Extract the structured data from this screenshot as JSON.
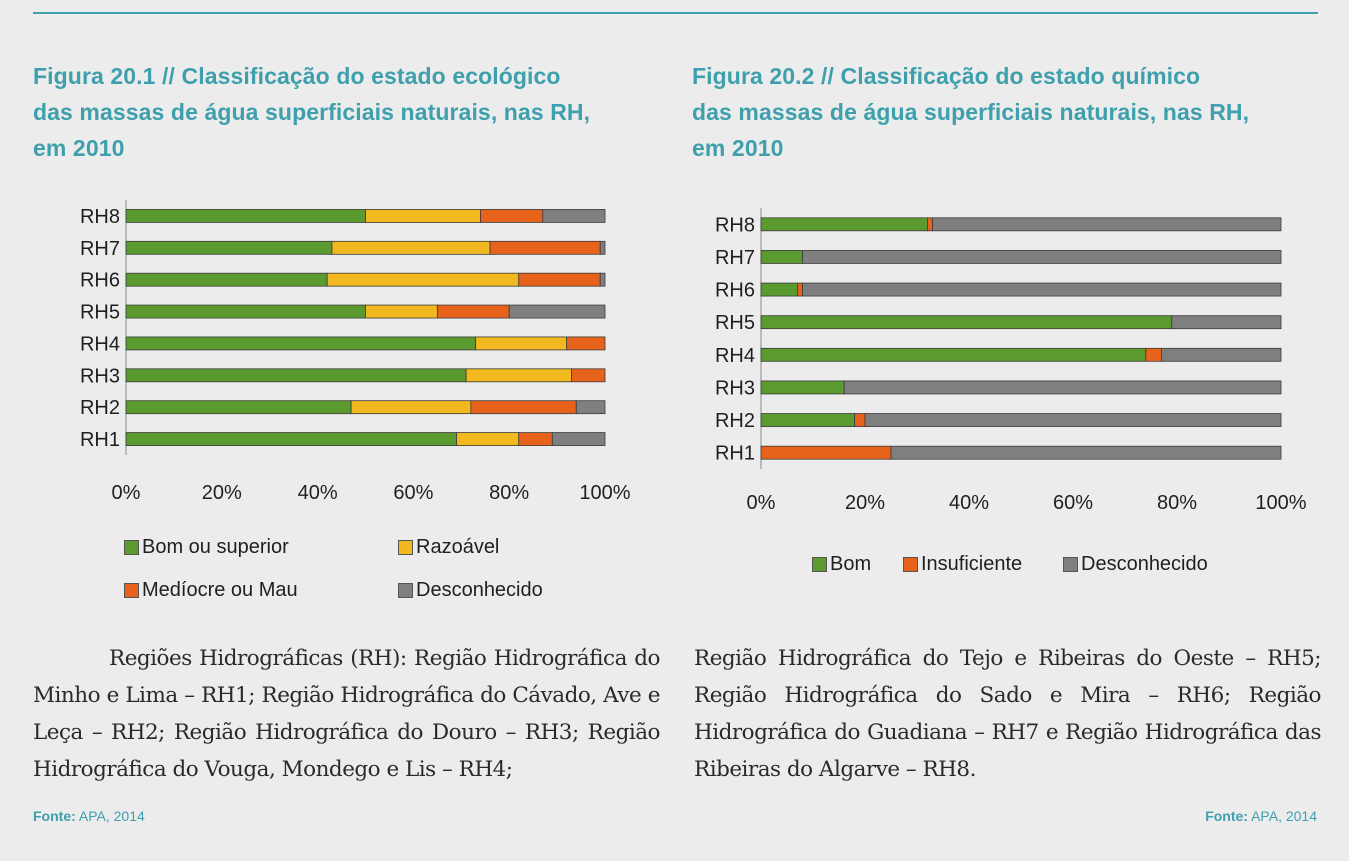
{
  "figure1": {
    "title_lines": [
      "Figura 20.1 // Classificação do estado ecológico",
      "das massas de água superficiais naturais, nas RH,",
      "em 2010"
    ]
  },
  "figure2": {
    "title_lines": [
      "Figura 20.2 // Classificação do estado químico",
      "das massas de água superficiais naturais, nas RH,",
      "em 2010"
    ]
  },
  "chart_data": [
    {
      "type": "bar",
      "orientation": "horizontal",
      "stacked": true,
      "categories": [
        "RH8",
        "RH7",
        "RH6",
        "RH5",
        "RH4",
        "RH3",
        "RH2",
        "RH1"
      ],
      "x_ticks": [
        "0%",
        "20%",
        "40%",
        "60%",
        "80%",
        "100%"
      ],
      "xlim": [
        0,
        100
      ],
      "series": [
        {
          "name": "Bom ou superior",
          "color": "#5b9a2e",
          "values": [
            50,
            43,
            42,
            50,
            73,
            71,
            47,
            69
          ]
        },
        {
          "name": "Razoável",
          "color": "#f1b81f",
          "values": [
            24,
            33,
            40,
            15,
            19,
            22,
            25,
            13
          ]
        },
        {
          "name": "Medíocre ou Mau",
          "color": "#e7631c",
          "values": [
            13,
            23,
            17,
            15,
            8,
            7,
            22,
            7
          ]
        },
        {
          "name": "Desconhecido",
          "color": "#7f7f7f",
          "values": [
            13,
            1,
            1,
            20,
            0,
            0,
            6,
            11
          ]
        }
      ]
    },
    {
      "type": "bar",
      "orientation": "horizontal",
      "stacked": true,
      "categories": [
        "RH8",
        "RH7",
        "RH6",
        "RH5",
        "RH4",
        "RH3",
        "RH2",
        "RH1"
      ],
      "x_ticks": [
        "0%",
        "20%",
        "40%",
        "60%",
        "80%",
        "100%"
      ],
      "xlim": [
        0,
        100
      ],
      "series": [
        {
          "name": "Bom",
          "color": "#5b9a2e",
          "values": [
            32,
            8,
            7,
            79,
            74,
            16,
            18,
            0
          ]
        },
        {
          "name": "Insuficiente",
          "color": "#e7631c",
          "values": [
            1,
            0,
            1,
            0,
            3,
            0,
            2,
            25
          ]
        },
        {
          "name": "Desconhecido",
          "color": "#7f7f7f",
          "values": [
            67,
            92,
            92,
            21,
            23,
            84,
            80,
            75
          ]
        }
      ]
    }
  ],
  "text": {
    "paragraph_left": "Regiões Hidrográficas (RH): Região Hidrográfica do Minho e Lima – RH1; Região Hidrográfica do Cávado, Ave e Leça – RH2; Região Hidrográfica do Douro – RH3; Região Hidrográfica do Vouga, Mondego e Lis – RH4;",
    "paragraph_right": "Região Hidrográfica do Tejo e Ribeiras do Oeste – RH5; Região Hidrográfica do Sado e Mira – RH6; Região Hidrográfica do Guadiana – RH7 e Região Hidrográfica das Ribeiras do Algarve – RH8."
  },
  "source": {
    "label": "Fonte:",
    "value": "APA, 2014"
  }
}
